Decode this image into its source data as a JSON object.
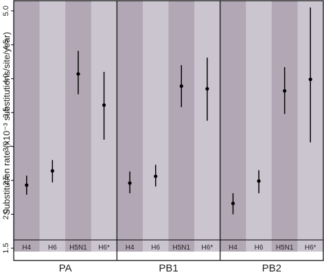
{
  "chart_data": {
    "type": "scatter",
    "ylabel": "Substitution rate (x10⁻³ substitutions/site/year)",
    "ylim": [
      1.45,
      5.15
    ],
    "y_ticks": [
      "1.5",
      "2.0",
      "2.5",
      "3.0",
      "3.5",
      "4.0",
      "4.5",
      "5.0"
    ],
    "categories": [
      "H4",
      "H6",
      "H5N1",
      "H6*"
    ],
    "grid": false,
    "band_colors": [
      "#b1a7b5",
      "#cbc5cf"
    ],
    "groups": [
      {
        "label": "PA",
        "points": [
          {
            "category": "H4",
            "y": 2.43,
            "lower": 2.29,
            "upper": 2.57
          },
          {
            "category": "H6",
            "y": 2.64,
            "lower": 2.47,
            "upper": 2.8
          },
          {
            "category": "H5N1",
            "y": 4.07,
            "lower": 3.77,
            "upper": 4.41
          },
          {
            "category": "H6*",
            "y": 3.61,
            "lower": 3.1,
            "upper": 4.1
          }
        ]
      },
      {
        "label": "PB1",
        "points": [
          {
            "category": "H4",
            "y": 2.46,
            "lower": 2.31,
            "upper": 2.63
          },
          {
            "category": "H6",
            "y": 2.56,
            "lower": 2.41,
            "upper": 2.73
          },
          {
            "category": "H5N1",
            "y": 3.89,
            "lower": 3.58,
            "upper": 4.2
          },
          {
            "category": "H6*",
            "y": 3.85,
            "lower": 3.38,
            "upper": 4.31
          }
        ]
      },
      {
        "label": "PB2",
        "points": [
          {
            "category": "H4",
            "y": 2.16,
            "lower": 2.0,
            "upper": 2.31
          },
          {
            "category": "H6",
            "y": 2.49,
            "lower": 2.31,
            "upper": 2.65
          },
          {
            "category": "H5N1",
            "y": 3.82,
            "lower": 3.48,
            "upper": 4.17
          },
          {
            "category": "H6*",
            "y": 3.99,
            "lower": 3.06,
            "upper": 5.05
          }
        ]
      }
    ]
  }
}
